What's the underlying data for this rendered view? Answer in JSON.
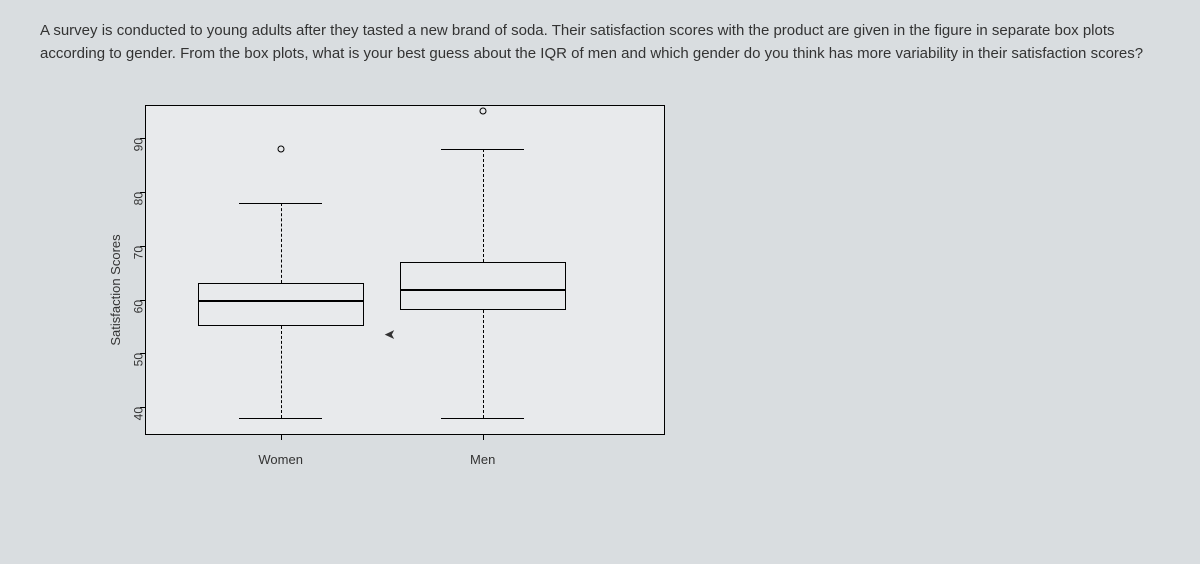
{
  "question_text": "A survey is conducted to young adults after they tasted a new brand of soda. Their satisfaction scores with the product are given in the figure in separate box plots according to gender. From the box plots, what is your best guess about the IQR of men and which gender do you think has more variability in their satisfaction scores?",
  "chart": {
    "type": "boxplot",
    "background_color": "#e8eaec",
    "page_background": "#d9dde0",
    "border_color": "#000000",
    "y_axis": {
      "label": "Satisfaction Scores",
      "min": 35,
      "max": 96,
      "ticks": [
        40,
        50,
        60,
        70,
        80,
        90
      ],
      "label_fontsize": 13,
      "tick_fontsize": 12,
      "tick_rotation": -90
    },
    "x_axis": {
      "categories": [
        "Women",
        "Men"
      ],
      "label_fontsize": 13
    },
    "box_style": {
      "whisker_style": "dashed",
      "median_width": 2,
      "outlier_marker": "circle",
      "outlier_size": 7
    },
    "series": [
      {
        "name": "Women",
        "x_center_pct": 26,
        "box_width_pct": 32,
        "whisker_cap_width_pct": 16,
        "min": 38,
        "q1": 55,
        "median": 60,
        "q3": 63,
        "max": 78,
        "outliers": [
          88
        ]
      },
      {
        "name": "Men",
        "x_center_pct": 65,
        "box_width_pct": 32,
        "whisker_cap_width_pct": 16,
        "min": 38,
        "q1": 58,
        "median": 62,
        "q3": 67,
        "max": 88,
        "outliers": [
          95
        ]
      }
    ]
  }
}
